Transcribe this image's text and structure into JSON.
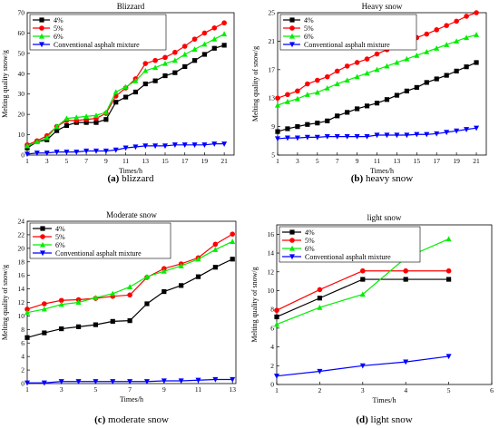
{
  "chart_data": [
    {
      "type": "line",
      "title": "Blizzard",
      "xlabel": "Times/h",
      "ylabel": "Melting quality snow/g",
      "caption_letter": "(a)",
      "caption_text": "blizzard",
      "xlim": [
        1,
        22
      ],
      "ylim": [
        0,
        70
      ],
      "xticks": [
        1,
        3,
        5,
        7,
        9,
        11,
        13,
        15,
        17,
        19,
        21
      ],
      "yticks": [
        0,
        10,
        20,
        30,
        40,
        50,
        60,
        70
      ],
      "legend_position": "top-left",
      "x": [
        1,
        2,
        3,
        4,
        5,
        6,
        7,
        8,
        9,
        10,
        11,
        12,
        13,
        14,
        15,
        16,
        17,
        18,
        19,
        20,
        21
      ],
      "series": [
        {
          "name": "4%",
          "color": "#000000",
          "marker": "square",
          "values": [
            3.5,
            6.5,
            7.5,
            12,
            14.5,
            16,
            16,
            16,
            17.5,
            26,
            28.5,
            31,
            35,
            36.5,
            39,
            40.5,
            43.5,
            46.5,
            49.5,
            52.5,
            54
          ]
        },
        {
          "name": "5%",
          "color": "#ff0000",
          "marker": "circle",
          "values": [
            5,
            7,
            9.5,
            14,
            17,
            17,
            17.5,
            18,
            20.5,
            29,
            33,
            37.5,
            45,
            46.5,
            48,
            50.5,
            53.5,
            57,
            60,
            62.5,
            65
          ]
        },
        {
          "name": "6%",
          "color": "#00ee00",
          "marker": "triangle-up",
          "values": [
            4.5,
            6.5,
            8.5,
            14,
            18,
            18.5,
            19,
            19.5,
            21,
            31,
            33.5,
            36.5,
            41.5,
            43,
            45,
            46.5,
            49.5,
            52,
            54.5,
            57,
            59.5
          ]
        },
        {
          "name": "Conventional asphalt mixture",
          "color": "#0000ff",
          "marker": "triangle-down",
          "values": [
            0.5,
            1,
            1,
            1.5,
            1.5,
            1.5,
            2,
            2,
            2,
            2.5,
            3.5,
            4,
            4.5,
            4.5,
            4.5,
            5,
            5,
            5,
            5,
            5.5,
            5.5
          ]
        }
      ]
    },
    {
      "type": "line",
      "title": "Heavy snow",
      "xlabel": "Times/h",
      "ylabel": "Melting quality of snow/g",
      "caption_letter": "(b)",
      "caption_text": "heavy snow",
      "xlim": [
        1,
        22
      ],
      "ylim": [
        5,
        25
      ],
      "xticks": [
        1,
        3,
        5,
        7,
        9,
        11,
        13,
        15,
        17,
        19,
        21
      ],
      "yticks": [
        5,
        9,
        13,
        17,
        21,
        25
      ],
      "legend_position": "top-left",
      "x": [
        1,
        2,
        3,
        4,
        5,
        6,
        7,
        8,
        9,
        10,
        11,
        12,
        13,
        14,
        15,
        16,
        17,
        18,
        19,
        20,
        21
      ],
      "series": [
        {
          "name": "4%",
          "color": "#000000",
          "marker": "square",
          "values": [
            8.3,
            8.7,
            9,
            9.3,
            9.5,
            9.8,
            10.5,
            11,
            11.5,
            11.9,
            12.3,
            12.8,
            13.4,
            14,
            14.5,
            15.2,
            15.7,
            16.2,
            16.8,
            17.4,
            18
          ]
        },
        {
          "name": "5%",
          "color": "#ff0000",
          "marker": "circle",
          "values": [
            13,
            13.5,
            14,
            15,
            15.5,
            16,
            16.8,
            17.5,
            18,
            18.5,
            19.2,
            19.8,
            20.3,
            20.9,
            21.5,
            22,
            22.6,
            23.2,
            23.8,
            24.5,
            25
          ]
        },
        {
          "name": "6%",
          "color": "#00ee00",
          "marker": "triangle-up",
          "values": [
            12,
            12.5,
            12.9,
            13.5,
            13.8,
            14.4,
            15,
            15.5,
            16,
            16.5,
            17,
            17.5,
            18,
            18.5,
            19,
            19.5,
            20,
            20.5,
            21,
            21.5,
            21.9
          ]
        },
        {
          "name": "Conventional asphalt mixture",
          "color": "#0000ff",
          "marker": "triangle-down",
          "values": [
            7.3,
            7.4,
            7.4,
            7.5,
            7.5,
            7.6,
            7.6,
            7.6,
            7.6,
            7.6,
            7.8,
            7.8,
            7.8,
            7.8,
            7.9,
            7.9,
            8,
            8.2,
            8.4,
            8.6,
            8.8
          ]
        }
      ]
    },
    {
      "type": "line",
      "title": "Moderate snow",
      "xlabel": "Times/h",
      "ylabel": "Melting quality of snow/g",
      "caption_letter": "(c)",
      "caption_text": "moderate snow",
      "xlim": [
        1,
        13.2
      ],
      "ylim": [
        0,
        24
      ],
      "xticks": [
        1,
        3,
        5,
        7,
        9,
        11,
        13
      ],
      "yticks": [
        0,
        2,
        4,
        6,
        8,
        10,
        12,
        14,
        16,
        18,
        20,
        22,
        24
      ],
      "legend_position": "top-left",
      "x": [
        1,
        2,
        3,
        4,
        5,
        6,
        7,
        8,
        9,
        10,
        11,
        12,
        13
      ],
      "series": [
        {
          "name": "4%",
          "color": "#000000",
          "marker": "square",
          "values": [
            6.8,
            7.5,
            8.1,
            8.4,
            8.7,
            9.2,
            9.3,
            11.8,
            13.6,
            14.5,
            15.8,
            17.2,
            18.4
          ]
        },
        {
          "name": "5%",
          "color": "#ff0000",
          "marker": "circle",
          "values": [
            11,
            11.8,
            12.3,
            12.4,
            12.6,
            12.9,
            13.1,
            15.7,
            17,
            17.7,
            18.6,
            20.6,
            22.1
          ]
        },
        {
          "name": "6%",
          "color": "#00ee00",
          "marker": "triangle-up",
          "values": [
            10.5,
            11,
            11.7,
            12,
            12.7,
            13.3,
            14.3,
            15.8,
            16.6,
            17.4,
            18.4,
            19.8,
            21
          ]
        },
        {
          "name": "Conventional asphalt mixture",
          "color": "#0000ff",
          "marker": "triangle-down",
          "values": [
            0.1,
            0.1,
            0.3,
            0.3,
            0.3,
            0.3,
            0.3,
            0.3,
            0.4,
            0.4,
            0.5,
            0.6,
            0.6
          ]
        }
      ]
    },
    {
      "type": "line",
      "title": "light snow",
      "xlabel": "Times/h",
      "ylabel": "Melting quality of snow/g",
      "caption_letter": "(d)",
      "caption_text": "light snow",
      "xlim": [
        1,
        6
      ],
      "ylim": [
        0,
        17
      ],
      "xticks": [
        1,
        2,
        3,
        4,
        5,
        6
      ],
      "yticks": [
        0,
        2,
        4,
        6,
        8,
        10,
        12,
        14,
        16
      ],
      "legend_position": "top-left",
      "x": [
        1,
        2,
        3,
        4,
        5
      ],
      "series": [
        {
          "name": "4%",
          "color": "#000000",
          "marker": "square",
          "values": [
            7.2,
            9.2,
            11.2,
            11.2,
            11.2
          ]
        },
        {
          "name": "5%",
          "color": "#ff0000",
          "marker": "circle",
          "values": [
            7.9,
            10.1,
            12.1,
            12.1,
            12.1
          ]
        },
        {
          "name": "6%",
          "color": "#00ee00",
          "marker": "triangle-up",
          "values": [
            6.4,
            8.2,
            9.6,
            13.5,
            15.5
          ]
        },
        {
          "name": "Conventional asphalt mixture",
          "color": "#0000ff",
          "marker": "triangle-down",
          "values": [
            0.9,
            1.4,
            2,
            2.4,
            3
          ]
        }
      ]
    }
  ]
}
